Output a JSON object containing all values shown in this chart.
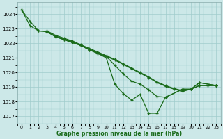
{
  "title": "Graphe pression niveau de la mer (hPa)",
  "bg_color": "#cce8e8",
  "grid_color": "#a0cccc",
  "line_color": "#1a6b1a",
  "xlim": [
    -0.5,
    23.5
  ],
  "ylim": [
    1016.5,
    1024.8
  ],
  "yticks": [
    1017,
    1018,
    1019,
    1020,
    1021,
    1022,
    1023,
    1024
  ],
  "xticks": [
    0,
    1,
    2,
    3,
    4,
    5,
    6,
    7,
    8,
    9,
    10,
    11,
    12,
    13,
    14,
    15,
    16,
    17,
    18,
    19,
    20,
    21,
    22,
    23
  ],
  "s1_x": [
    0,
    1,
    2,
    3,
    4,
    5,
    6,
    7,
    8,
    9,
    10,
    11,
    12,
    13,
    14,
    15,
    16,
    17,
    19,
    20,
    21,
    23
  ],
  "s1_y": [
    1024.3,
    1023.5,
    1022.85,
    1022.8,
    1022.45,
    1022.25,
    1022.05,
    1021.85,
    1021.55,
    1021.3,
    1021.0,
    1019.2,
    1018.55,
    1018.1,
    1018.5,
    1017.2,
    1017.2,
    1018.3,
    1018.85,
    1018.85,
    1019.3,
    1019.1
  ],
  "s2_x": [
    0,
    1,
    2,
    3,
    4,
    5,
    6,
    7,
    8,
    9,
    10,
    11,
    12,
    13,
    14,
    15,
    16,
    17,
    19,
    20,
    21,
    23
  ],
  "s2_y": [
    1024.3,
    1023.2,
    1022.85,
    1022.8,
    1022.45,
    1022.25,
    1022.05,
    1021.85,
    1021.55,
    1021.3,
    1021.1,
    1020.5,
    1019.9,
    1019.4,
    1019.2,
    1018.8,
    1018.35,
    1018.3,
    1018.85,
    1018.85,
    1019.3,
    1019.1
  ],
  "s3_x": [
    3,
    4,
    5,
    6,
    7,
    8,
    9,
    10,
    11,
    12,
    13,
    14,
    15,
    16,
    17,
    18,
    19,
    20,
    21,
    22,
    23
  ],
  "s3_y": [
    1022.85,
    1022.55,
    1022.35,
    1022.15,
    1021.9,
    1021.65,
    1021.4,
    1021.15,
    1020.9,
    1020.6,
    1020.3,
    1020.0,
    1019.7,
    1019.35,
    1019.1,
    1018.9,
    1018.75,
    1018.85,
    1019.1,
    1019.1,
    1019.1
  ],
  "s4_x": [
    3,
    4,
    5,
    6,
    7,
    8,
    9,
    10,
    11,
    12,
    13,
    14,
    15,
    16,
    17,
    18,
    19,
    20,
    21,
    22,
    23
  ],
  "s4_y": [
    1022.75,
    1022.5,
    1022.3,
    1022.1,
    1021.85,
    1021.6,
    1021.35,
    1021.1,
    1020.85,
    1020.55,
    1020.25,
    1019.95,
    1019.65,
    1019.3,
    1019.05,
    1018.85,
    1018.7,
    1018.85,
    1019.1,
    1019.1,
    1019.1
  ]
}
